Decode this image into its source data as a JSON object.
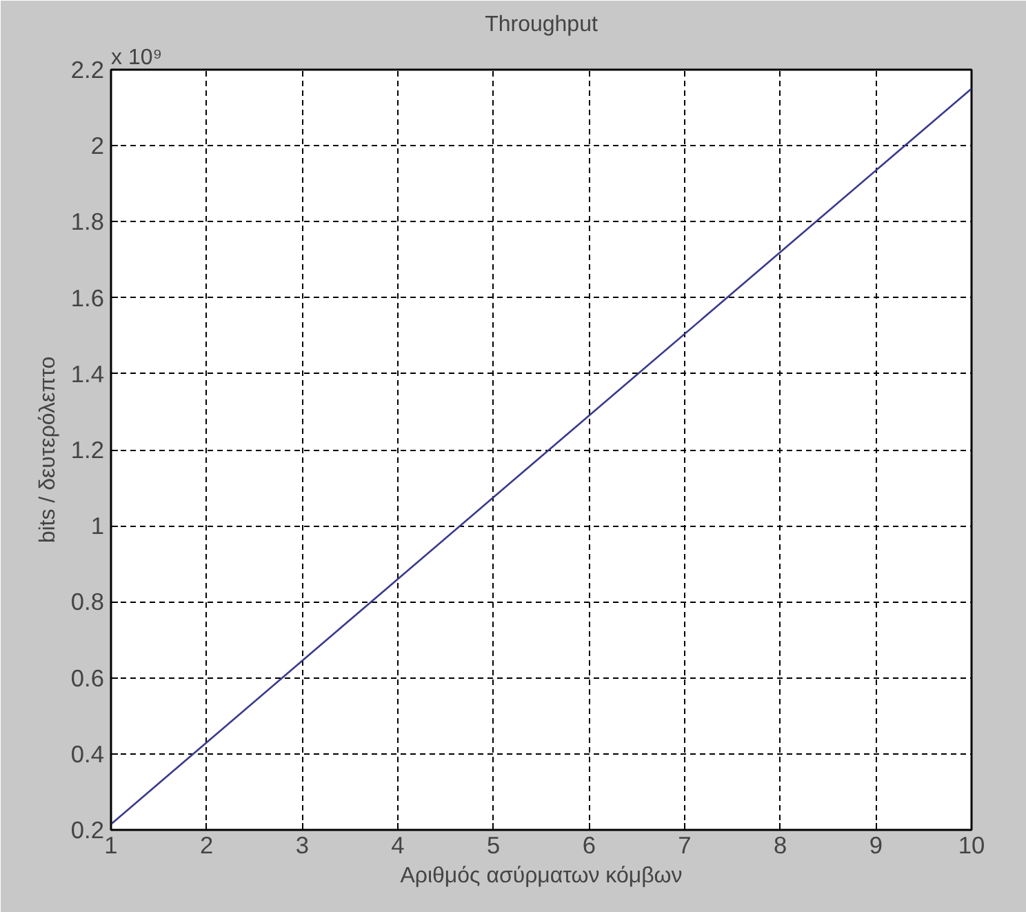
{
  "chart_data": {
    "type": "line",
    "title": "Throughput",
    "xlabel": "Αριθμός ασύρματων κόμβων",
    "ylabel": "bits / δευτερόλεπτο",
    "annotations": [
      "x 10⁹"
    ],
    "x": [
      1,
      10
    ],
    "series": [
      {
        "color": "#3a3a8c",
        "values": [
          0.215,
          2.15
        ]
      }
    ],
    "xlim": [
      1,
      10
    ],
    "xticks": [
      1,
      2,
      3,
      4,
      5,
      6,
      7,
      8,
      9,
      10
    ],
    "ylim": [
      0.2,
      2.2
    ],
    "yticks": [
      0.2,
      0.4,
      0.6,
      0.8,
      1,
      1.2,
      1.4,
      1.6,
      1.8,
      2,
      2.2
    ],
    "grid": true,
    "line_style": "solid"
  }
}
